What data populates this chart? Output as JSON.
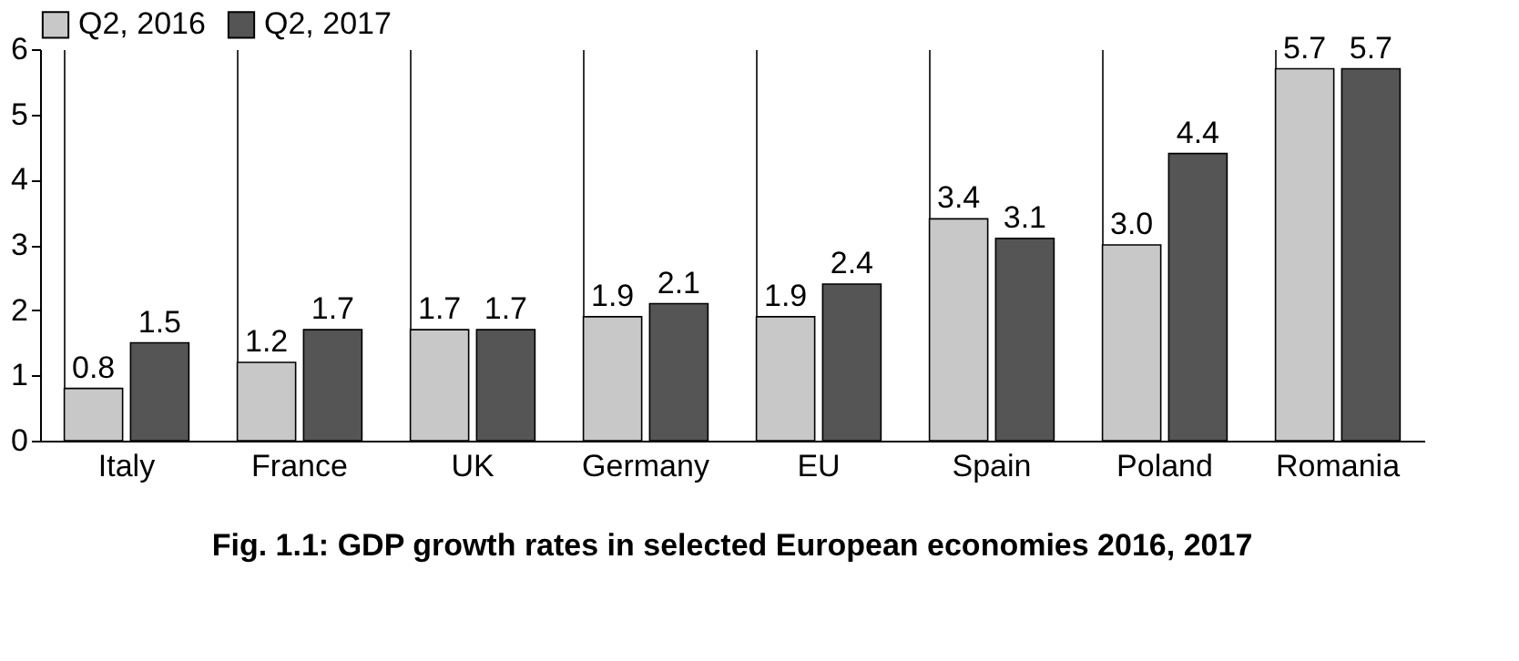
{
  "chart_data": {
    "type": "bar",
    "title": "Fig. 1.1: GDP growth rates in selected European economies 2016, 2017",
    "categories": [
      "Italy",
      "France",
      "UK",
      "Germany",
      "EU",
      "Spain",
      "Poland",
      "Romania"
    ],
    "series": [
      {
        "name": "Q2, 2016",
        "color": "#c8c8c8",
        "values": [
          0.8,
          1.2,
          1.7,
          1.9,
          1.9,
          3.4,
          3.0,
          5.7
        ],
        "value_labels": [
          "0.8",
          "1.2",
          "1.7",
          "1.9",
          "1.9",
          "3.4",
          "3.0",
          "5.7"
        ]
      },
      {
        "name": "Q2, 2017",
        "color": "#555555",
        "values": [
          1.5,
          1.7,
          1.7,
          2.1,
          2.4,
          3.1,
          4.4,
          5.7
        ],
        "value_labels": [
          "1.5",
          "1.7",
          "1.7",
          "2.1",
          "2.4",
          "3.1",
          "4.4",
          "5.7"
        ]
      }
    ],
    "ylim": [
      0,
      6
    ],
    "yticks": [
      0,
      1,
      2,
      3,
      4,
      5,
      6
    ],
    "grid": "x",
    "legend": "top left"
  }
}
